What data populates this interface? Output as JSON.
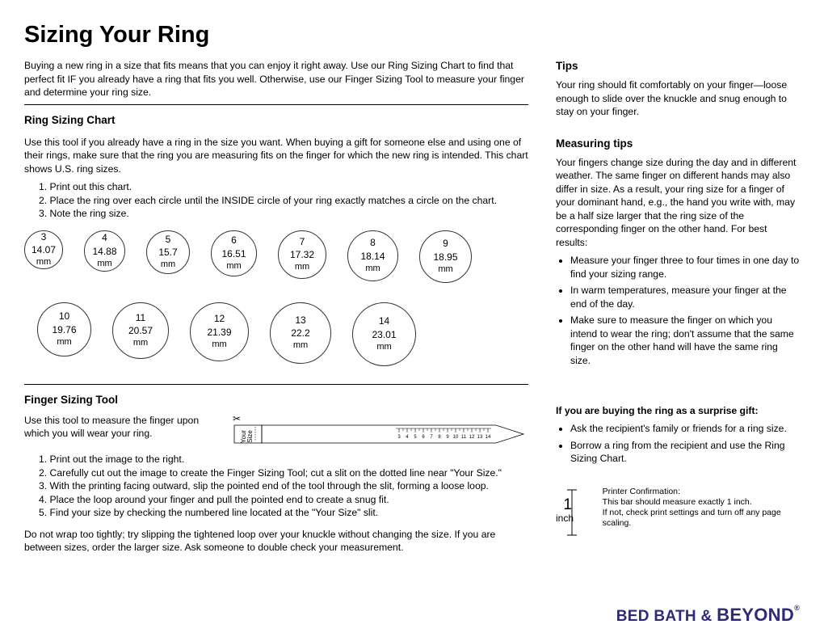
{
  "title": "Sizing Your Ring",
  "intro": "Buying a new ring in a size that fits means that you can enjoy it right away. Use our Ring Sizing Chart to find that perfect fit IF you already have a ring that fits you well. Otherwise, use our Finger Sizing Tool to measure your finger and determine your ring size.",
  "chart": {
    "heading": "Ring Sizing Chart",
    "para": "Use this tool if you already have a ring in the size you want. When buying a gift for someone else and using one of their rings, make sure that the ring you are measuring fits on the finger for which the new ring is intended. This chart shows U.S. ring sizes.",
    "steps": [
      "1. Print out this chart.",
      "2. Place the ring over each circle until the INSIDE circle of your ring exactly matches a circle on the chart.",
      "3. Note the ring size."
    ],
    "rings_row1": [
      {
        "size": "3",
        "mm": "14.07",
        "d": 48
      },
      {
        "size": "4",
        "mm": "14.88",
        "d": 51
      },
      {
        "size": "5",
        "mm": "15.7",
        "d": 54
      },
      {
        "size": "6",
        "mm": "16.51",
        "d": 57
      },
      {
        "size": "7",
        "mm": "17.32",
        "d": 60
      },
      {
        "size": "8",
        "mm": "18.14",
        "d": 63
      },
      {
        "size": "9",
        "mm": "18.95",
        "d": 65
      }
    ],
    "rings_row2": [
      {
        "size": "10",
        "mm": "19.76",
        "d": 67
      },
      {
        "size": "11",
        "mm": "20.57",
        "d": 70
      },
      {
        "size": "12",
        "mm": "21.39",
        "d": 73
      },
      {
        "size": "13",
        "mm": "22.2",
        "d": 76
      },
      {
        "size": "14",
        "mm": "23.01",
        "d": 79
      }
    ],
    "unit": "mm"
  },
  "tool": {
    "heading": "Finger Sizing Tool",
    "intro": "Use this tool to measure the finger upon which you will wear your ring.",
    "steps": [
      "1. Print out the image to the right.",
      "2. Carefully cut out the image to create the Finger Sizing Tool; cut a slit on the dotted line near \"Your Size.\"",
      "3. With the printing facing outward, slip the pointed end of the tool through the slit, forming a loose loop.",
      "4. Place the loop around your finger and pull the pointed end to create a snug fit.",
      "5. Find your size by checking the numbered line located at the \"Your Size\" slit."
    ],
    "outro": "Do not wrap too tightly; try slipping the tightened loop over your knuckle without changing the size. If you are between sizes, order the larger size. Ask someone to double check your measurement.",
    "strip_label": "Your\nSize",
    "ruler_marks": [
      "3",
      "4",
      "5",
      "6",
      "7",
      "8",
      "9",
      "10",
      "11",
      "12",
      "13",
      "14"
    ]
  },
  "tips": {
    "heading": "Tips",
    "para": "Your ring should fit comfortably on your finger—loose enough to slide over the knuckle and snug enough to stay on your finger.",
    "mtips_heading": "Measuring tips",
    "mtips_para": "Your fingers change size during the day and in different weather. The same finger on different hands may also differ in size. As a result, your ring size for a finger of your dominant hand, e.g., the hand you write with, may be a half size larger that the ring size of the corresponding finger on the other hand. For best results:",
    "mtips_bullets": [
      "Measure your finger three to four times in one day to find your sizing range.",
      "In warm temperatures, measure your finger at the end of the day.",
      "Make sure to measure the finger on which you intend to wear the ring; don't assume that the same finger on the other hand will have the same ring size."
    ],
    "surprise_heading": "If you are buying the ring as a surprise gift:",
    "surprise_bullets": [
      "Ask the recipient's family or friends for a ring size.",
      "Borrow a ring from the recipient and use the Ring Sizing Chart."
    ],
    "printer": {
      "num": "1",
      "unit": "inch",
      "title": "Printer Confirmation:",
      "line1": "This bar should measure exactly 1 inch.",
      "line2": "If not, check print settings and turn off any page scaling."
    }
  },
  "brand": {
    "a": "BED BATH &",
    "b": "BEYOND"
  },
  "colors": {
    "brand": "#2f2a7a",
    "circle_border": "#333333",
    "rule": "#000000"
  }
}
